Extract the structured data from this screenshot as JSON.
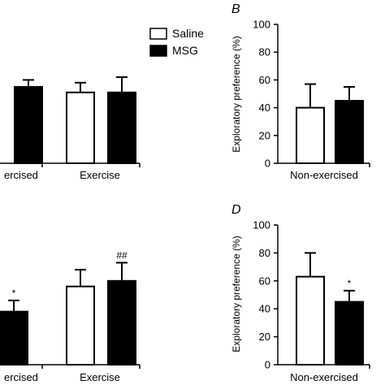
{
  "legend": {
    "entries": [
      {
        "label": "Saline",
        "color": "#ffffff"
      },
      {
        "label": "MSG",
        "color": "#000000"
      }
    ]
  },
  "chart_data": [
    {
      "id": "A",
      "type": "bar",
      "panel_label": "",
      "ylabel": "",
      "ylim": [
        0,
        100
      ],
      "categories": [
        "Non-exercised",
        "Exercise"
      ],
      "category_labels_visible": [
        "ercised",
        "Exercise"
      ],
      "series": [
        {
          "name": "Saline",
          "color": "#ffffff",
          "values": [
            null,
            51
          ],
          "errors": [
            null,
            7
          ]
        },
        {
          "name": "MSG",
          "color": "#000000",
          "values": [
            55,
            51
          ],
          "errors": [
            5,
            11
          ]
        }
      ],
      "annotations": []
    },
    {
      "id": "B",
      "type": "bar",
      "panel_label": "B",
      "ylabel": "Exploratory preference (%)",
      "ylim": [
        0,
        100
      ],
      "yticks": [
        0,
        20,
        40,
        60,
        80,
        100
      ],
      "categories": [
        "Non-exercised"
      ],
      "category_labels_visible": [
        "Non-exercised"
      ],
      "series": [
        {
          "name": "Saline",
          "color": "#ffffff",
          "values": [
            40
          ],
          "errors": [
            17
          ]
        },
        {
          "name": "MSG",
          "color": "#000000",
          "values": [
            45
          ],
          "errors": [
            10
          ]
        }
      ],
      "annotations": []
    },
    {
      "id": "C",
      "type": "bar",
      "panel_label": "",
      "ylabel": "",
      "ylim": [
        0,
        100
      ],
      "categories": [
        "Non-exercised",
        "Exercise"
      ],
      "category_labels_visible": [
        "ercised",
        "Exercise"
      ],
      "series": [
        {
          "name": "Saline",
          "color": "#ffffff",
          "values": [
            null,
            56
          ],
          "errors": [
            null,
            12
          ]
        },
        {
          "name": "MSG",
          "color": "#000000",
          "values": [
            38,
            60
          ],
          "errors": [
            8,
            13
          ]
        }
      ],
      "annotations": [
        {
          "text": "*",
          "series": 1,
          "category": 0
        },
        {
          "text": "##",
          "series": 1,
          "category": 1
        }
      ]
    },
    {
      "id": "D",
      "type": "bar",
      "panel_label": "D",
      "ylabel": "Exploratory preference (%)",
      "ylim": [
        0,
        100
      ],
      "yticks": [
        0,
        20,
        40,
        60,
        80,
        100
      ],
      "categories": [
        "Non-exercised"
      ],
      "category_labels_visible": [
        "Non-exercised"
      ],
      "series": [
        {
          "name": "Saline",
          "color": "#ffffff",
          "values": [
            63
          ],
          "errors": [
            17
          ]
        },
        {
          "name": "MSG",
          "color": "#000000",
          "values": [
            45
          ],
          "errors": [
            8
          ]
        }
      ],
      "annotations": [
        {
          "text": "*",
          "series": 1,
          "category": 0
        }
      ]
    }
  ]
}
